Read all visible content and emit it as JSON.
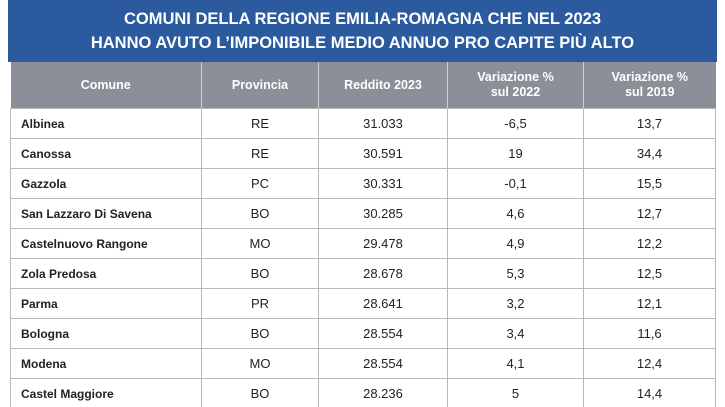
{
  "header": {
    "title": [
      "COMUNI DELLA REGIONE EMILIA-ROMAGNA CHE NEL 2023",
      "HANNO AVUTO L’IMPONIBILE MEDIO ANNUO PRO CAPITE PIÙ ALTO"
    ]
  },
  "table": {
    "columns": [
      [
        "Comune"
      ],
      [
        "Provincia"
      ],
      [
        "Reddito 2023"
      ],
      [
        "Variazione %",
        "sul 2022"
      ],
      [
        "Variazione %",
        "sul 2019"
      ]
    ],
    "rows": [
      [
        "Albinea",
        "RE",
        "31.033",
        "-6,5",
        "13,7"
      ],
      [
        "Canossa",
        "RE",
        "30.591",
        "19",
        "34,4"
      ],
      [
        "Gazzola",
        "PC",
        "30.331",
        "-0,1",
        "15,5"
      ],
      [
        "San Lazzaro Di Savena",
        "BO",
        "30.285",
        "4,6",
        "12,7"
      ],
      [
        "Castelnuovo Rangone",
        "MO",
        "29.478",
        "4,9",
        "12,2"
      ],
      [
        "Zola Predosa",
        "BO",
        "28.678",
        "5,3",
        "12,5"
      ],
      [
        "Parma",
        "PR",
        "28.641",
        "3,2",
        "12,1"
      ],
      [
        "Bologna",
        "BO",
        "28.554",
        "3,4",
        "11,6"
      ],
      [
        "Modena",
        "MO",
        "28.554",
        "4,1",
        "12,4"
      ],
      [
        "Castel Maggiore",
        "BO",
        "28.236",
        "5",
        "14,4"
      ]
    ]
  }
}
